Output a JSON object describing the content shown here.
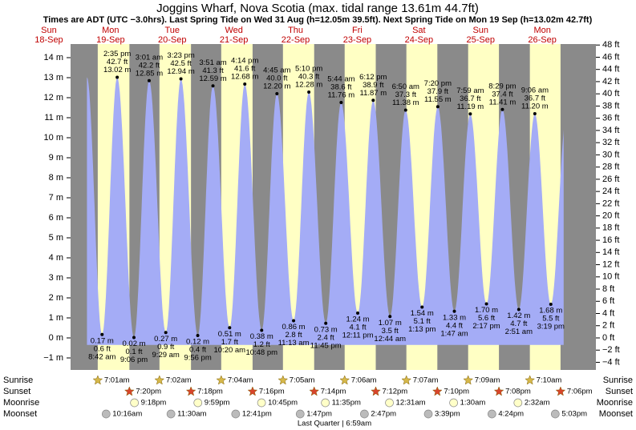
{
  "title": "Joggins Wharf, Nova Scotia (max. tidal range 13.61m 44.7ft)",
  "subtitle": "Times are ADT (UTC −3.0hrs). Last Spring Tide on Wed 31 Aug (h=12.05m 39.5ft). Next Spring Tide on Mon 19 Sep (h=13.02m 42.7ft)",
  "rows": {
    "sunrise": "Sunrise",
    "sunset": "Sunset",
    "moonrise": "Moonrise",
    "moonset": "Moonset"
  },
  "moon_phase": "Last Quarter | 6:59am",
  "ylim_m": [
    -1.6,
    14.68
  ],
  "yticks_m": [
    {
      "value": -1,
      "label": "−1 m"
    },
    {
      "value": 0,
      "label": "0 m"
    },
    {
      "value": 1,
      "label": "1 m"
    },
    {
      "value": 2,
      "label": "2 m"
    },
    {
      "value": 3,
      "label": "3 m"
    },
    {
      "value": 4,
      "label": "4 m"
    },
    {
      "value": 5,
      "label": "5 m"
    },
    {
      "value": 6,
      "label": "6 m"
    },
    {
      "value": 7,
      "label": "7 m"
    },
    {
      "value": 8,
      "label": "8 m"
    },
    {
      "value": 9,
      "label": "9 m"
    },
    {
      "value": 10,
      "label": "10 m"
    },
    {
      "value": 11,
      "label": "11 m"
    },
    {
      "value": 12,
      "label": "12 m"
    },
    {
      "value": 13,
      "label": "13 m"
    },
    {
      "value": 14,
      "label": "14 m"
    }
  ],
  "ylim_ft": [
    -5.25,
    48.16
  ],
  "yticks_ft": [
    {
      "value": -4,
      "label": "−4 ft"
    },
    {
      "value": -2,
      "label": "−2 ft"
    },
    {
      "value": 0,
      "label": "0 ft"
    },
    {
      "value": 2,
      "label": "2 ft"
    },
    {
      "value": 4,
      "label": "4 ft"
    },
    {
      "value": 6,
      "label": "6 ft"
    },
    {
      "value": 8,
      "label": "8 ft"
    },
    {
      "value": 10,
      "label": "10 ft"
    },
    {
      "value": 12,
      "label": "12 ft"
    },
    {
      "value": 14,
      "label": "14 ft"
    },
    {
      "value": 16,
      "label": "16 ft"
    },
    {
      "value": 18,
      "label": "18 ft"
    },
    {
      "value": 20,
      "label": "20 ft"
    },
    {
      "value": 22,
      "label": "22 ft"
    },
    {
      "value": 24,
      "label": "24 ft"
    },
    {
      "value": 26,
      "label": "26 ft"
    },
    {
      "value": 28,
      "label": "28 ft"
    },
    {
      "value": 30,
      "label": "30 ft"
    },
    {
      "value": 32,
      "label": "32 ft"
    },
    {
      "value": 34,
      "label": "34 ft"
    },
    {
      "value": 36,
      "label": "36 ft"
    },
    {
      "value": 38,
      "label": "38 ft"
    },
    {
      "value": 40,
      "label": "40 ft"
    },
    {
      "value": 42,
      "label": "42 ft"
    },
    {
      "value": 44,
      "label": "44 ft"
    },
    {
      "value": 46,
      "label": "46 ft"
    },
    {
      "value": 48,
      "label": "48 ft"
    }
  ],
  "days": [
    {
      "weekday": "Sun",
      "date": "18-Sep",
      "tides": []
    },
    {
      "weekday": "Mon",
      "date": "19-Sep",
      "sunrise": "7:01am",
      "sunset": "7:20pm",
      "moonrise": "9:18pm",
      "moonset": "10:16am",
      "tides": [
        {
          "time": "8:42 am",
          "m": 0.17,
          "m_label": "0.17 m",
          "ft": 0.6,
          "ft_label": "0.6 ft"
        },
        {
          "time": "2:35 pm",
          "m": 13.02,
          "m_label": "13.02 m",
          "ft": 42.7,
          "ft_label": "42.7 ft"
        },
        {
          "time": "9:06 pm",
          "m": 0.02,
          "m_label": "0.02 m",
          "ft": 0.1,
          "ft_label": "0.1 ft"
        }
      ]
    },
    {
      "weekday": "Tue",
      "date": "20-Sep",
      "sunrise": "7:02am",
      "sunset": "7:18pm",
      "moonrise": "9:59pm",
      "moonset": "11:30am",
      "tides": [
        {
          "time": "3:01 am",
          "m": 12.85,
          "m_label": "12.85 m",
          "ft": 42.2,
          "ft_label": "42.2 ft"
        },
        {
          "time": "9:29 am",
          "m": 0.27,
          "m_label": "0.27 m",
          "ft": 0.9,
          "ft_label": "0.9 ft"
        },
        {
          "time": "3:23 pm",
          "m": 12.94,
          "m_label": "12.94 m",
          "ft": 42.5,
          "ft_label": "42.5 ft"
        },
        {
          "time": "9:56 pm",
          "m": 0.12,
          "m_label": "0.12 m",
          "ft": 0.4,
          "ft_label": "0.4 ft"
        }
      ]
    },
    {
      "weekday": "Wed",
      "date": "21-Sep",
      "sunrise": "7:04am",
      "sunset": "7:16pm",
      "moonrise": "10:45pm",
      "moonset": "12:41pm",
      "tides": [
        {
          "time": "3:51 am",
          "m": 12.59,
          "m_label": "12.59 m",
          "ft": 41.3,
          "ft_label": "41.3 ft"
        },
        {
          "time": "10:20 am",
          "m": 0.51,
          "m_label": "0.51 m",
          "ft": 1.7,
          "ft_label": "1.7 ft"
        },
        {
          "time": "4:14 pm",
          "m": 12.68,
          "m_label": "12.68 m",
          "ft": 41.6,
          "ft_label": "41.6 ft"
        },
        {
          "time": "10:48 pm",
          "m": 0.38,
          "m_label": "0.38 m",
          "ft": 1.2,
          "ft_label": "1.2 ft"
        }
      ]
    },
    {
      "weekday": "Thu",
      "date": "22-Sep",
      "sunrise": "7:05am",
      "sunset": "7:14pm",
      "moonrise": "11:35pm",
      "moonset": "1:47pm",
      "tides": [
        {
          "time": "4:45 am",
          "m": 12.2,
          "m_label": "12.20 m",
          "ft": 40,
          "ft_label": "40.0 ft"
        },
        {
          "time": "11:13 am",
          "m": 0.86,
          "m_label": "0.86 m",
          "ft": 2.8,
          "ft_label": "2.8 ft"
        },
        {
          "time": "5:10 pm",
          "m": 12.28,
          "m_label": "12.28 m",
          "ft": 40.3,
          "ft_label": "40.3 ft"
        },
        {
          "time": "11:45 pm",
          "m": 0.73,
          "m_label": "0.73 m",
          "ft": 2.4,
          "ft_label": "2.4 ft"
        }
      ]
    },
    {
      "weekday": "Fri",
      "date": "23-Sep",
      "sunrise": "7:06am",
      "sunset": "7:12pm",
      "moonset": "2:47pm",
      "tides": [
        {
          "time": "5:44 am",
          "m": 11.76,
          "m_label": "11.76 m",
          "ft": 38.6,
          "ft_label": "38.6 ft"
        },
        {
          "time": "12:11 pm",
          "m": 1.24,
          "m_label": "1.24 m",
          "ft": 4.1,
          "ft_label": "4.1 ft"
        },
        {
          "time": "6:12 pm",
          "m": 11.87,
          "m_label": "11.87 m",
          "ft": 38.9,
          "ft_label": "38.9 ft"
        }
      ]
    },
    {
      "weekday": "Sat",
      "date": "24-Sep",
      "sunrise": "7:07am",
      "sunset": "7:10pm",
      "moonrise": "12:31am",
      "moonset": "3:39pm",
      "tides": [
        {
          "time": "12:44 am",
          "m": 1.07,
          "m_label": "1.07 m",
          "ft": 3.5,
          "ft_label": "3.5 ft"
        },
        {
          "time": "6:50 am",
          "m": 11.38,
          "m_label": "11.38 m",
          "ft": 37.3,
          "ft_label": "37.3 ft"
        },
        {
          "time": "1:13 pm",
          "m": 1.54,
          "m_label": "1.54 m",
          "ft": 5.1,
          "ft_label": "5.1 ft"
        },
        {
          "time": "7:20 pm",
          "m": 11.55,
          "m_label": "11.55 m",
          "ft": 37.9,
          "ft_label": "37.9 ft"
        }
      ]
    },
    {
      "weekday": "Sun",
      "date": "25-Sep",
      "sunrise": "7:09am",
      "sunset": "7:08pm",
      "moonrise": "1:30am",
      "moonset": "4:24pm",
      "tides": [
        {
          "time": "1:47 am",
          "m": 1.33,
          "m_label": "1.33 m",
          "ft": 4.4,
          "ft_label": "4.4 ft"
        },
        {
          "time": "7:59 am",
          "m": 11.19,
          "m_label": "11.19 m",
          "ft": 36.7,
          "ft_label": "36.7 ft"
        },
        {
          "time": "2:17 pm",
          "m": 1.7,
          "m_label": "1.70 m",
          "ft": 5.6,
          "ft_label": "5.6 ft"
        },
        {
          "time": "8:29 pm",
          "m": 11.41,
          "m_label": "11.41 m",
          "ft": 37.4,
          "ft_label": "37.4 ft"
        }
      ]
    },
    {
      "weekday": "Mon",
      "date": "26-Sep",
      "sunrise": "7:10am",
      "sunset": "7:06pm",
      "moonrise": "2:32am",
      "moonset": "5:03pm",
      "tides": [
        {
          "time": "2:51 am",
          "m": 1.42,
          "m_label": "1.42 m",
          "ft": 4.7,
          "ft_label": "4.7 ft"
        },
        {
          "time": "9:06 am",
          "m": 11.2,
          "m_label": "11.20 m",
          "ft": 36.7,
          "ft_label": "36.7 ft"
        },
        {
          "time": "3:19 pm",
          "m": 1.68,
          "m_label": "1.68 m",
          "ft": 5.5,
          "ft_label": "5.5 ft"
        }
      ]
    }
  ]
}
